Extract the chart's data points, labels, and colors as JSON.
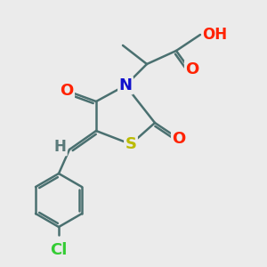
{
  "bg_color": "#ebebeb",
  "bond_color": "#4a7070",
  "bond_width": 1.8,
  "atom_colors": {
    "O": "#ff2200",
    "N": "#1111cc",
    "S": "#bbbb00",
    "Cl": "#33cc33",
    "H_gray": "#5a7a7a",
    "C": "#4a7070"
  },
  "font_size_atom": 13,
  "font_size_small": 10,
  "font_size_oh": 12
}
